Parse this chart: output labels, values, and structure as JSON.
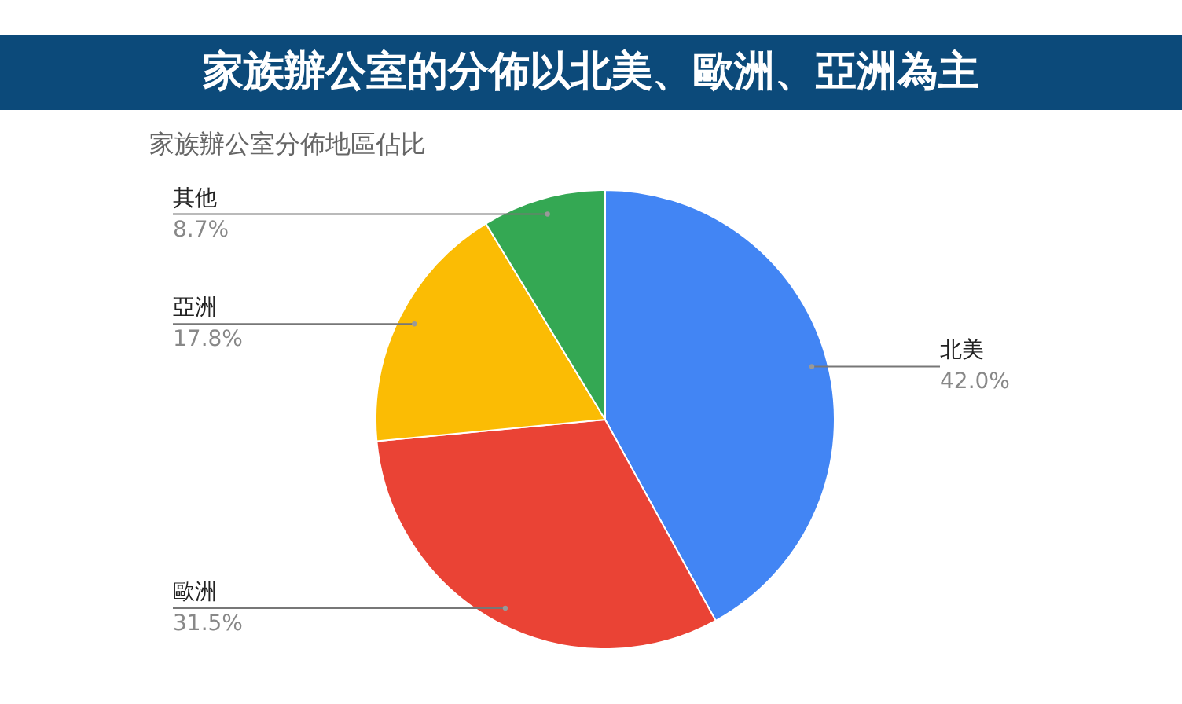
{
  "chart_data": {
    "type": "pie",
    "title": "家族辦公室的分佈以北美、歐洲、亞洲為主",
    "subtitle": "家族辦公室分佈地區佔比",
    "categories": [
      "北美",
      "歐洲",
      "亞洲",
      "其他"
    ],
    "values": [
      42.0,
      31.5,
      17.8,
      8.7
    ],
    "colors": [
      "#4285f4",
      "#ea4335",
      "#fbbc04",
      "#34a853"
    ],
    "value_labels": [
      "42.0%",
      "31.5%",
      "17.8%",
      "8.7%"
    ],
    "legend": false
  }
}
